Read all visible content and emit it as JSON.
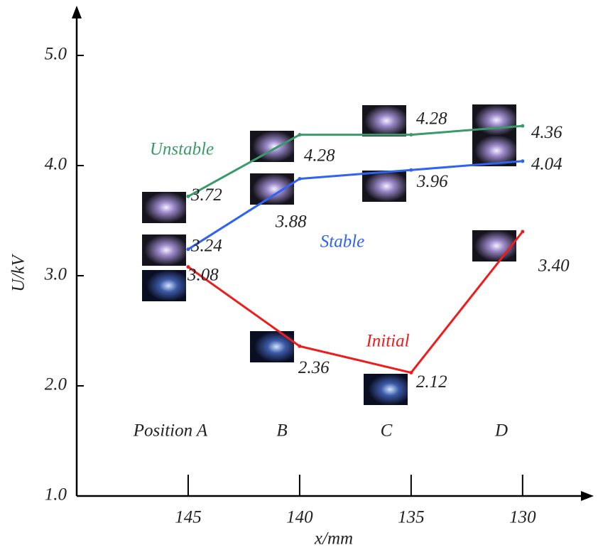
{
  "chart_data": {
    "type": "line",
    "x_label": "x/mm",
    "y_label": "U/kV",
    "x": [
      145,
      140,
      135,
      130
    ],
    "xlim": [
      150,
      127
    ],
    "xticks": [
      145,
      140,
      135,
      130
    ],
    "ylim": [
      1.0,
      5.4
    ],
    "yticks": [
      {
        "value": 1,
        "label": "1.0"
      },
      {
        "value": 2,
        "label": "2.0"
      },
      {
        "value": 3,
        "label": "3.0"
      },
      {
        "value": 4,
        "label": "4.0"
      },
      {
        "value": 5,
        "label": "5.0"
      }
    ],
    "position_labels": [
      "Position A",
      "B",
      "C",
      "D"
    ],
    "series": [
      {
        "name": "Unstable",
        "color": "#3a9a6a",
        "values": [
          3.72,
          4.28,
          4.28,
          4.36
        ]
      },
      {
        "name": "Stable",
        "color": "#2f63f0",
        "values": [
          3.24,
          3.88,
          3.96,
          4.04
        ]
      },
      {
        "name": "Initial",
        "color": "#ee1c1c",
        "values": [
          3.08,
          2.36,
          2.12,
          3.4
        ],
        "value_labels": [
          "3.08",
          "2.36",
          "2.12",
          "3.40"
        ]
      }
    ]
  }
}
